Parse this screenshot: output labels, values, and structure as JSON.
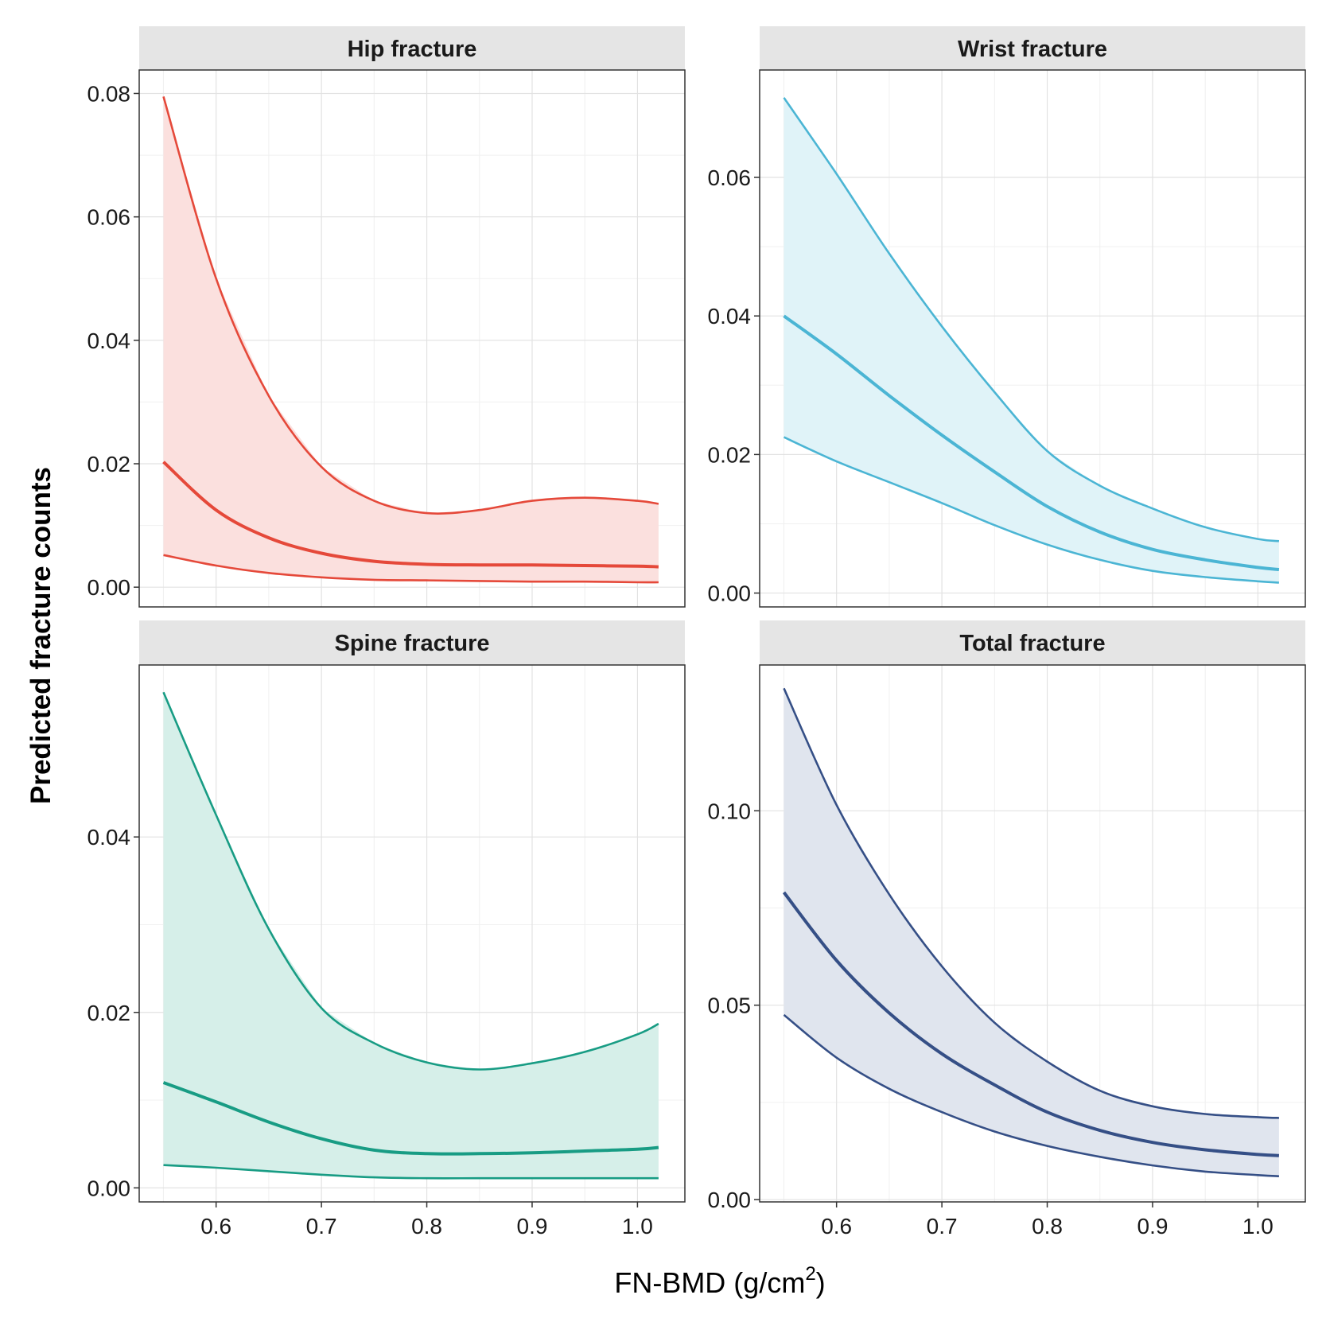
{
  "figure": {
    "ylabel": "Predicted fracture counts",
    "xlabel_main": "FN-BMD (g/cm",
    "xlabel_sup": "2",
    "xlabel_close": ")"
  },
  "chart_data": [
    {
      "type": "line",
      "title": "Hip fracture",
      "color": "#e5493a",
      "fill": "#fbe0de",
      "x": [
        0.55,
        0.6,
        0.65,
        0.7,
        0.75,
        0.8,
        0.85,
        0.9,
        0.95,
        1.0,
        1.02
      ],
      "series": [
        {
          "role": "upper",
          "values": [
            0.0795,
            0.05,
            0.031,
            0.0195,
            0.014,
            0.012,
            0.0125,
            0.014,
            0.0145,
            0.014,
            0.0135
          ]
        },
        {
          "role": "fit",
          "values": [
            0.0203,
            0.0125,
            0.008,
            0.0055,
            0.0042,
            0.0037,
            0.0036,
            0.0036,
            0.0035,
            0.0034,
            0.0033
          ]
        },
        {
          "role": "lower",
          "values": [
            0.0052,
            0.0035,
            0.0023,
            0.0016,
            0.0012,
            0.0011,
            0.001,
            0.0009,
            0.0009,
            0.0008,
            0.0008
          ]
        }
      ],
      "xticks": [
        "0.6",
        "0.7",
        "0.8",
        "0.9",
        "1.0"
      ],
      "yticks": [
        "0.00",
        "0.02",
        "0.04",
        "0.06",
        "0.08"
      ],
      "ytick_values": [
        0,
        0.02,
        0.04,
        0.06,
        0.08
      ],
      "ylim": [
        -0.0032,
        0.0838
      ],
      "xlim": [
        0.527,
        1.045
      ],
      "grid": true
    },
    {
      "type": "line",
      "title": "Wrist fracture",
      "color": "#4bb5d4",
      "fill": "#e0f3f8",
      "x": [
        0.55,
        0.6,
        0.65,
        0.7,
        0.75,
        0.8,
        0.85,
        0.9,
        0.95,
        1.0,
        1.02
      ],
      "series": [
        {
          "role": "upper",
          "values": [
            0.0715,
            0.0605,
            0.049,
            0.0385,
            0.029,
            0.0205,
            0.0155,
            0.0122,
            0.0095,
            0.0078,
            0.0075
          ]
        },
        {
          "role": "fit",
          "values": [
            0.04,
            0.0345,
            0.0285,
            0.0228,
            0.0175,
            0.0125,
            0.0088,
            0.0063,
            0.0048,
            0.0037,
            0.0034
          ]
        },
        {
          "role": "lower",
          "values": [
            0.0225,
            0.019,
            0.016,
            0.013,
            0.0098,
            0.007,
            0.0048,
            0.0032,
            0.0023,
            0.0017,
            0.0015
          ]
        }
      ],
      "xticks": [
        "0.6",
        "0.7",
        "0.8",
        "0.9",
        "1.0"
      ],
      "yticks": [
        "0.00",
        "0.02",
        "0.04",
        "0.06"
      ],
      "ytick_values": [
        0,
        0.02,
        0.04,
        0.06
      ],
      "ylim": [
        -0.002,
        0.0755
      ],
      "xlim": [
        0.527,
        1.045
      ],
      "grid": true
    },
    {
      "type": "line",
      "title": "Spine fracture",
      "color": "#189c84",
      "fill": "#d6efe9",
      "x": [
        0.55,
        0.6,
        0.65,
        0.7,
        0.75,
        0.8,
        0.85,
        0.9,
        0.95,
        1.0,
        1.02
      ],
      "series": [
        {
          "role": "upper",
          "values": [
            0.0565,
            0.0425,
            0.0295,
            0.0205,
            0.0165,
            0.0143,
            0.0135,
            0.0142,
            0.0155,
            0.0175,
            0.0187
          ]
        },
        {
          "role": "fit",
          "values": [
            0.012,
            0.0098,
            0.0075,
            0.0056,
            0.0043,
            0.0039,
            0.0039,
            0.004,
            0.0042,
            0.0044,
            0.0046
          ]
        },
        {
          "role": "lower",
          "values": [
            0.0026,
            0.0023,
            0.0019,
            0.0015,
            0.0012,
            0.0011,
            0.0011,
            0.0011,
            0.0011,
            0.0011,
            0.0011
          ]
        }
      ],
      "xticks": [
        "0.6",
        "0.7",
        "0.8",
        "0.9",
        "1.0"
      ],
      "yticks": [
        "0.00",
        "0.02",
        "0.04"
      ],
      "ytick_values": [
        0,
        0.02,
        0.04
      ],
      "ylim": [
        -0.0016,
        0.0596
      ],
      "xlim": [
        0.527,
        1.045
      ],
      "grid": true
    },
    {
      "type": "line",
      "title": "Total fracture",
      "color": "#354f86",
      "fill": "#e0e5ee",
      "x": [
        0.55,
        0.6,
        0.65,
        0.7,
        0.75,
        0.8,
        0.85,
        0.9,
        0.95,
        1.0,
        1.02
      ],
      "series": [
        {
          "role": "upper",
          "values": [
            0.1315,
            0.1015,
            0.0785,
            0.06,
            0.0455,
            0.0355,
            0.028,
            0.024,
            0.022,
            0.0212,
            0.021
          ]
        },
        {
          "role": "fit",
          "values": [
            0.079,
            0.0615,
            0.048,
            0.0375,
            0.0295,
            0.0225,
            0.0178,
            0.0147,
            0.0128,
            0.0116,
            0.0113
          ]
        },
        {
          "role": "lower",
          "values": [
            0.0475,
            0.0365,
            0.0285,
            0.0225,
            0.0175,
            0.0138,
            0.011,
            0.0088,
            0.0072,
            0.0063,
            0.006
          ]
        }
      ],
      "xticks": [
        "0.6",
        "0.7",
        "0.8",
        "0.9",
        "1.0"
      ],
      "yticks": [
        "0.00",
        "0.05",
        "0.10"
      ],
      "ytick_values": [
        0,
        0.05,
        0.1
      ],
      "ylim": [
        -0.0006,
        0.1375
      ],
      "xlim": [
        0.527,
        1.045
      ],
      "grid": true
    }
  ]
}
